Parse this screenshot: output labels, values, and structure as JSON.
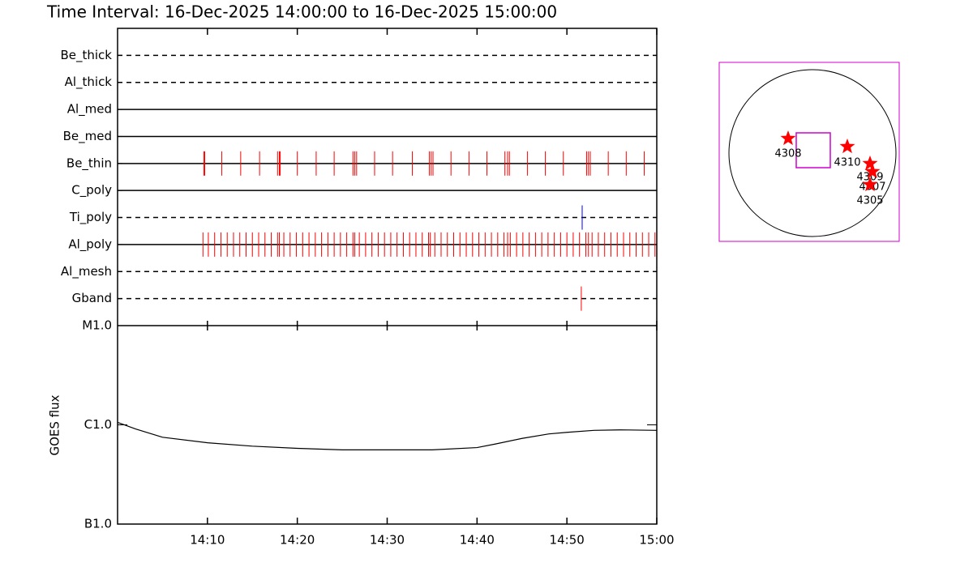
{
  "chart_data": [
    {
      "type": "timeline",
      "title": "Time Interval: 16-Dec-2025 14:00:00 to 16-Dec-2025 15:00:00",
      "xlim": [
        0,
        60
      ],
      "xticks": [
        {
          "value": 10,
          "label": "14:10"
        },
        {
          "value": 20,
          "label": "14:20"
        },
        {
          "value": 30,
          "label": "14:30"
        },
        {
          "value": 40,
          "label": "14:40"
        },
        {
          "value": 50,
          "label": "14:50"
        },
        {
          "value": 60,
          "label": "15:00"
        }
      ],
      "rows": [
        {
          "name": "Be_thick",
          "style": "dashed",
          "events": []
        },
        {
          "name": "Al_thick",
          "style": "dashed",
          "events": []
        },
        {
          "name": "Al_med",
          "style": "solid",
          "events": []
        },
        {
          "name": "Be_med",
          "style": "solid",
          "events": []
        },
        {
          "name": "Be_thin",
          "style": "solid",
          "color": "#ff0000",
          "events": [
            9.6,
            9.7,
            11.6,
            13.7,
            15.8,
            17.8,
            18.0,
            18.1,
            20.0,
            22.1,
            24.1,
            26.2,
            26.4,
            26.6,
            28.6,
            30.6,
            32.8,
            34.7,
            34.9,
            35.1,
            37.1,
            39.1,
            41.1,
            43.1,
            43.4,
            43.6,
            45.6,
            47.6,
            49.6,
            52.2,
            52.4,
            52.6,
            54.6,
            56.6,
            58.6
          ]
        },
        {
          "name": "C_poly",
          "style": "solid",
          "events": []
        },
        {
          "name": "Ti_poly",
          "style": "dashed",
          "color": "#0000ff",
          "events": [
            51.7
          ]
        },
        {
          "name": "Al_poly",
          "style": "solid",
          "color": "#ff0000",
          "events": [
            9.5,
            10.1,
            10.8,
            11.5,
            12.2,
            12.9,
            13.6,
            14.3,
            15.0,
            15.7,
            16.4,
            17.1,
            17.8,
            18.0,
            18.5,
            19.2,
            19.9,
            20.6,
            21.3,
            22.0,
            22.7,
            23.4,
            24.1,
            24.8,
            25.5,
            26.2,
            26.4,
            26.9,
            27.6,
            28.3,
            29.0,
            29.7,
            30.4,
            31.1,
            31.8,
            32.5,
            33.2,
            33.9,
            34.6,
            34.8,
            35.3,
            36.0,
            36.7,
            37.4,
            38.1,
            38.8,
            39.5,
            40.2,
            40.9,
            41.6,
            42.3,
            43.0,
            43.4,
            43.7,
            44.4,
            45.1,
            45.8,
            46.5,
            47.2,
            47.9,
            48.6,
            49.3,
            50.0,
            50.7,
            51.4,
            52.1,
            52.4,
            52.8,
            53.5,
            54.2,
            54.9,
            55.6,
            56.3,
            57.0,
            57.7,
            58.4,
            59.1,
            59.8
          ]
        },
        {
          "name": "Al_mesh",
          "style": "dashed",
          "events": []
        },
        {
          "name": "Gband",
          "style": "dashed",
          "color": "#ff0000",
          "events": [
            51.6
          ]
        }
      ]
    },
    {
      "type": "line",
      "ylabel": "GOES flux",
      "log": true,
      "color": "#000000",
      "xlim": [
        0,
        60
      ],
      "ylim": [
        1e-07,
        1e-05
      ],
      "yticks": [
        {
          "value": 1e-07,
          "label": "B1.0"
        },
        {
          "value": 1e-06,
          "label": "C1.0"
        },
        {
          "value": 1e-05,
          "label": "M1.0"
        }
      ],
      "x": [
        0,
        2,
        5,
        10,
        15,
        20,
        25,
        30,
        35,
        40,
        42,
        45,
        48,
        50,
        53,
        56,
        60
      ],
      "values": [
        1.06e-06,
        9.1e-07,
        7.5e-07,
        6.6e-07,
        6.1e-07,
        5.8e-07,
        5.6e-07,
        5.6e-07,
        5.6e-07,
        5.9e-07,
        6.4e-07,
        7.3e-07,
        8.1e-07,
        8.4e-07,
        8.8e-07,
        8.9e-07,
        8.8e-07
      ]
    }
  ],
  "sun_map": {
    "regions": [
      "4308",
      "4310",
      "4309",
      "4307",
      "4305"
    ]
  }
}
